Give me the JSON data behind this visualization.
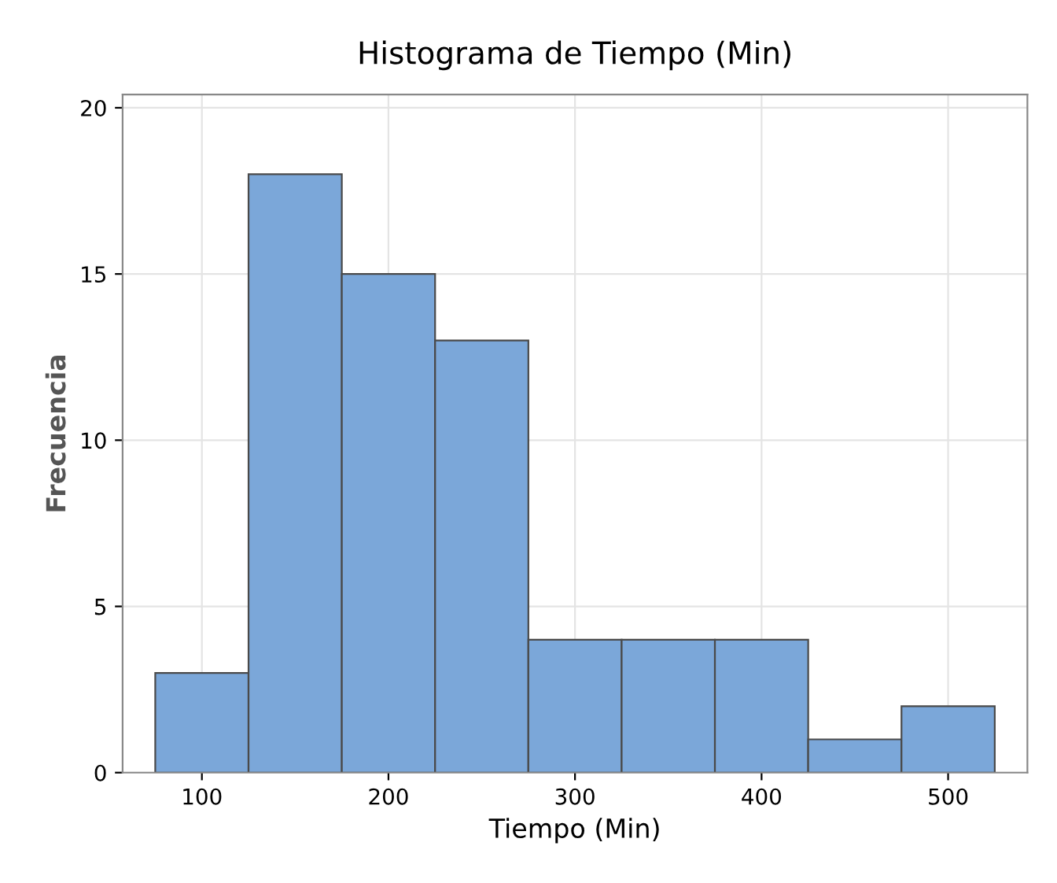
{
  "chart_data": {
    "type": "histogram",
    "title": "Histograma de Tiempo (Min)",
    "xlabel": "Tiempo (Min)",
    "ylabel": "Frecuencia",
    "bins": [
      75,
      125,
      175,
      225,
      275,
      325,
      375,
      425,
      475,
      525
    ],
    "values": [
      3,
      18,
      15,
      13,
      4,
      4,
      4,
      1,
      2
    ],
    "color": "#7ba7d9",
    "xlim": [
      57.5,
      542.5
    ],
    "xticks": [
      100,
      200,
      300,
      400,
      500
    ],
    "ylim": [
      0,
      20.4
    ],
    "yticks": [
      0,
      5,
      10,
      15,
      20
    ],
    "grid": true
  }
}
